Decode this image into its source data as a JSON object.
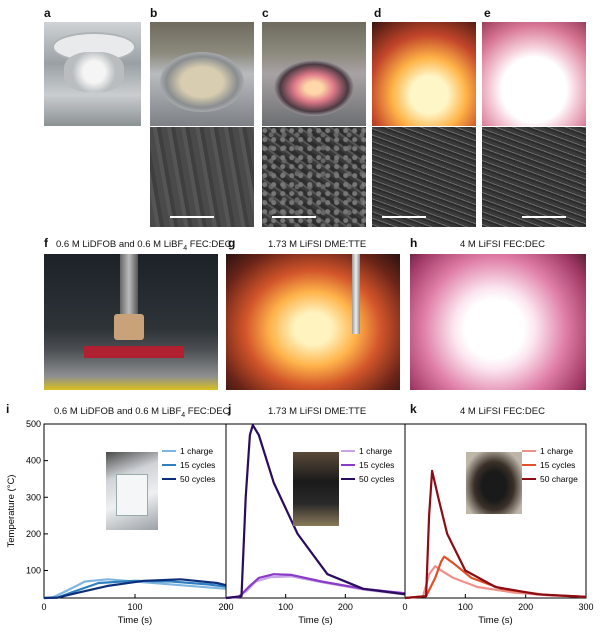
{
  "panels_top": [
    "a",
    "b",
    "c",
    "d",
    "e"
  ],
  "panels_mid": [
    {
      "label": "f",
      "title": "0.6 M LiDFOB and 0.6 M LiBF4 FEC:DEC"
    },
    {
      "label": "g",
      "title": "1.73 M LiFSI DME:TTE"
    },
    {
      "label": "h",
      "title": "4 M LiFSI FEC:DEC"
    }
  ],
  "chart_data": [
    {
      "label": "i",
      "type": "line",
      "title": "0.6 M LiDFOB and 0.6 M LiBF4 FEC:DEC",
      "xlabel": "Time (s)",
      "ylabel": "Temperature (°C)",
      "xlim": [
        0,
        200
      ],
      "ylim": [
        25,
        500
      ],
      "xticks": [
        0,
        100,
        200
      ],
      "yticks": [
        100,
        200,
        300,
        400,
        500
      ],
      "legend": "top-right",
      "series": [
        {
          "name": "1 charge",
          "color": "#7fb6e0",
          "x": [
            0,
            10,
            25,
            45,
            70,
            100,
            150,
            200
          ],
          "y": [
            25,
            27,
            45,
            70,
            76,
            70,
            60,
            50
          ]
        },
        {
          "name": "15 cycles",
          "color": "#2f7fc0",
          "x": [
            0,
            15,
            30,
            60,
            100,
            140,
            180,
            200
          ],
          "y": [
            25,
            26,
            40,
            66,
            72,
            70,
            62,
            56
          ]
        },
        {
          "name": "50 cycles",
          "color": "#0d2f7a",
          "x": [
            0,
            15,
            35,
            70,
            110,
            150,
            190,
            200
          ],
          "y": [
            25,
            26,
            38,
            58,
            72,
            76,
            66,
            60
          ]
        }
      ]
    },
    {
      "label": "j",
      "type": "line",
      "title": "1.73 M LiFSI DME:TTE",
      "xlabel": "Time (s)",
      "ylabel": "",
      "xlim": [
        0,
        300
      ],
      "ylim": [
        25,
        500
      ],
      "xticks": [
        0,
        100,
        200
      ],
      "yticks": [],
      "legend": "top-right",
      "series": [
        {
          "name": "1 charge",
          "color": "#c6a6e6",
          "x": [
            0,
            20,
            35,
            50,
            75,
            110,
            160,
            230,
            300
          ],
          "y": [
            25,
            28,
            45,
            70,
            82,
            84,
            68,
            48,
            35
          ]
        },
        {
          "name": "15 cycles",
          "color": "#8a3cc8",
          "x": [
            0,
            22,
            38,
            55,
            80,
            110,
            160,
            230,
            300
          ],
          "y": [
            25,
            28,
            55,
            80,
            90,
            88,
            70,
            50,
            38
          ]
        },
        {
          "name": "50 cycles",
          "color": "#2a0c5e",
          "x": [
            0,
            26,
            33,
            40,
            45,
            55,
            80,
            120,
            170,
            230,
            300
          ],
          "y": [
            25,
            30,
            300,
            470,
            497,
            470,
            340,
            200,
            90,
            50,
            35
          ]
        }
      ]
    },
    {
      "label": "k",
      "type": "line",
      "title": "4 M LiFSI FEC:DEC",
      "xlabel": "Time (s)",
      "ylabel": "",
      "xlim": [
        0,
        300
      ],
      "ylim": [
        25,
        500
      ],
      "xticks": [
        0,
        100,
        200,
        300
      ],
      "yticks": [],
      "legend": "top-right",
      "series": [
        {
          "name": "1 charge",
          "color": "#f0908a",
          "x": [
            0,
            30,
            40,
            50,
            60,
            80,
            120,
            180,
            240,
            300
          ],
          "y": [
            25,
            30,
            90,
            112,
            100,
            80,
            55,
            40,
            32,
            28
          ]
        },
        {
          "name": "15 cycles",
          "color": "#e0502a",
          "x": [
            0,
            35,
            50,
            60,
            65,
            80,
            110,
            160,
            230,
            300
          ],
          "y": [
            25,
            30,
            80,
            125,
            138,
            120,
            80,
            50,
            34,
            28
          ]
        },
        {
          "name": "50 charge",
          "color": "#8b0c14",
          "x": [
            0,
            35,
            40,
            45,
            55,
            70,
            100,
            150,
            220,
            300
          ],
          "y": [
            25,
            30,
            250,
            372,
            300,
            200,
            100,
            55,
            35,
            28
          ]
        }
      ]
    }
  ]
}
